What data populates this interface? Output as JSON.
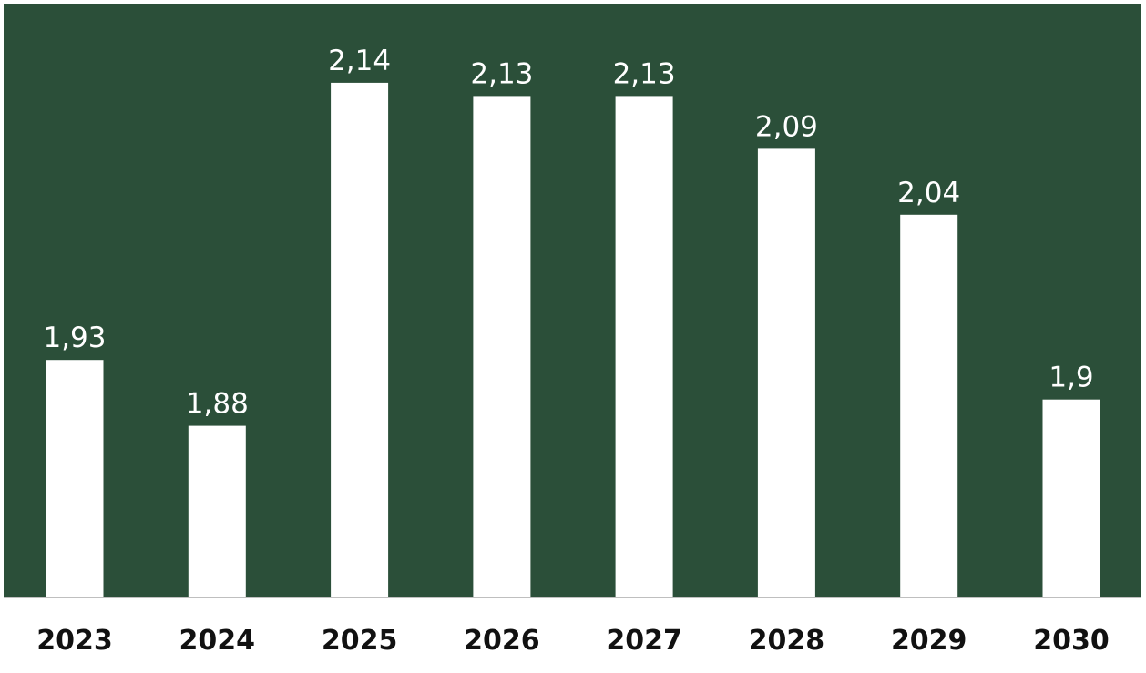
{
  "colors": {
    "plot_background": "#2b4f39",
    "bar": "#ffffff",
    "axis_line": "#bfbfbf",
    "value_label": "#ffffff",
    "tick_label": "#111111"
  },
  "chart_data": {
    "type": "bar",
    "title": "",
    "xlabel": "",
    "ylabel": "",
    "categories": [
      "2023",
      "2024",
      "2025",
      "2026",
      "2027",
      "2028",
      "2029",
      "2030"
    ],
    "values": [
      1.93,
      1.88,
      2.14,
      2.13,
      2.13,
      2.09,
      2.04,
      1.9
    ],
    "value_labels": [
      "1,93",
      "1,88",
      "2,14",
      "2,13",
      "2,13",
      "2,09",
      "2,04",
      "1,9"
    ],
    "ylim": [
      1.75,
      2.2
    ],
    "grid": false,
    "legend": "none",
    "y_axis_visible": false
  }
}
